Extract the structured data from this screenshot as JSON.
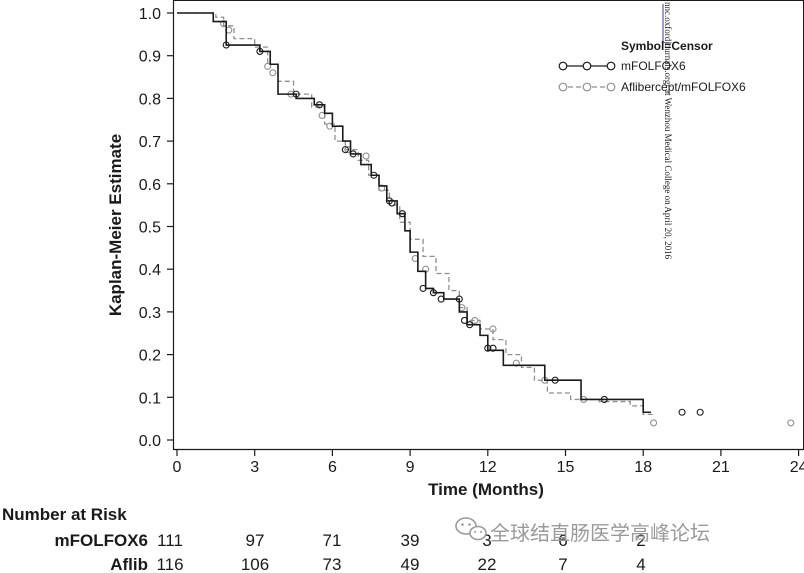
{
  "chart_data": {
    "type": "line",
    "subtype": "kaplan-meier",
    "title": "",
    "xlabel": "Time (Months)",
    "ylabel": "Kaplan-Meier Estimate",
    "xlim": [
      0,
      24
    ],
    "ylim": [
      0,
      1
    ],
    "xticks": [
      "0",
      "3",
      "6",
      "9",
      "12",
      "15",
      "18",
      "21",
      "24"
    ],
    "yticks": [
      "0.0",
      "0.1",
      "0.2",
      "0.3",
      "0.4",
      "0.5",
      "0.6",
      "0.7",
      "0.8",
      "0.9",
      "1.0"
    ],
    "legend_title": "Symbol=Censor",
    "legend_position": "top-right",
    "series": [
      {
        "name": "mFOLFOX6",
        "color": "#1a1a1a",
        "dash": "solid",
        "steps": [
          [
            0,
            1.0
          ],
          [
            1.4,
            0.98
          ],
          [
            1.9,
            0.925
          ],
          [
            3.2,
            0.91
          ],
          [
            3.6,
            0.88
          ],
          [
            3.9,
            0.81
          ],
          [
            4.6,
            0.8
          ],
          [
            5.3,
            0.785
          ],
          [
            5.7,
            0.765
          ],
          [
            6.0,
            0.735
          ],
          [
            6.4,
            0.7
          ],
          [
            6.7,
            0.67
          ],
          [
            7.1,
            0.645
          ],
          [
            7.5,
            0.62
          ],
          [
            7.8,
            0.595
          ],
          [
            8.1,
            0.56
          ],
          [
            8.5,
            0.53
          ],
          [
            8.8,
            0.49
          ],
          [
            9.0,
            0.44
          ],
          [
            9.3,
            0.395
          ],
          [
            9.6,
            0.355
          ],
          [
            9.9,
            0.345
          ],
          [
            10.3,
            0.33
          ],
          [
            10.9,
            0.3
          ],
          [
            11.2,
            0.27
          ],
          [
            11.7,
            0.245
          ],
          [
            12.0,
            0.21
          ],
          [
            12.6,
            0.175
          ],
          [
            14.2,
            0.14
          ],
          [
            15.6,
            0.095
          ],
          [
            18.0,
            0.065
          ]
        ],
        "end_x": 18.3,
        "censors": [
          [
            1.9,
            0.925
          ],
          [
            3.2,
            0.91
          ],
          [
            4.6,
            0.81
          ],
          [
            5.5,
            0.785
          ],
          [
            6.5,
            0.68
          ],
          [
            6.8,
            0.67
          ],
          [
            7.6,
            0.62
          ],
          [
            8.2,
            0.56
          ],
          [
            8.3,
            0.555
          ],
          [
            8.7,
            0.53
          ],
          [
            9.5,
            0.355
          ],
          [
            9.9,
            0.345
          ],
          [
            10.2,
            0.33
          ],
          [
            10.9,
            0.33
          ],
          [
            11.1,
            0.28
          ],
          [
            11.3,
            0.27
          ],
          [
            12.0,
            0.215
          ],
          [
            12.2,
            0.215
          ],
          [
            14.6,
            0.14
          ],
          [
            16.5,
            0.095
          ],
          [
            19.5,
            0.065
          ],
          [
            20.2,
            0.065
          ]
        ]
      },
      {
        "name": "Aflibercept/mFOLFOX6",
        "color": "#8f8f8f",
        "dash": "dashed",
        "steps": [
          [
            0,
            1.0
          ],
          [
            1.5,
            0.99
          ],
          [
            1.8,
            0.97
          ],
          [
            2.2,
            0.94
          ],
          [
            3.0,
            0.92
          ],
          [
            3.5,
            0.88
          ],
          [
            3.9,
            0.84
          ],
          [
            4.5,
            0.81
          ],
          [
            5.2,
            0.78
          ],
          [
            5.7,
            0.74
          ],
          [
            6.1,
            0.7
          ],
          [
            6.5,
            0.68
          ],
          [
            7.0,
            0.655
          ],
          [
            7.4,
            0.62
          ],
          [
            7.8,
            0.585
          ],
          [
            8.2,
            0.55
          ],
          [
            8.6,
            0.51
          ],
          [
            9.0,
            0.47
          ],
          [
            9.5,
            0.43
          ],
          [
            10.0,
            0.39
          ],
          [
            10.5,
            0.35
          ],
          [
            10.9,
            0.31
          ],
          [
            11.2,
            0.28
          ],
          [
            11.7,
            0.26
          ],
          [
            12.2,
            0.235
          ],
          [
            12.7,
            0.2
          ],
          [
            13.3,
            0.17
          ],
          [
            13.8,
            0.14
          ],
          [
            14.3,
            0.11
          ],
          [
            15.2,
            0.095
          ],
          [
            16.3,
            0.09
          ],
          [
            17.5,
            0.08
          ],
          [
            18.0,
            0.06
          ]
        ],
        "end_x": 18.4,
        "censors": [
          [
            1.8,
            0.975
          ],
          [
            2.0,
            0.96
          ],
          [
            3.5,
            0.875
          ],
          [
            3.7,
            0.86
          ],
          [
            4.4,
            0.81
          ],
          [
            5.6,
            0.76
          ],
          [
            5.9,
            0.735
          ],
          [
            6.6,
            0.68
          ],
          [
            7.3,
            0.665
          ],
          [
            7.9,
            0.59
          ],
          [
            9.2,
            0.425
          ],
          [
            9.6,
            0.4
          ],
          [
            11.0,
            0.31
          ],
          [
            11.5,
            0.28
          ],
          [
            12.2,
            0.26
          ],
          [
            13.1,
            0.18
          ],
          [
            14.2,
            0.14
          ],
          [
            15.7,
            0.095
          ],
          [
            18.4,
            0.04
          ],
          [
            23.7,
            0.04
          ]
        ]
      }
    ],
    "risk_table": {
      "title": "Number at Risk",
      "rows": [
        {
          "label": "mFOLFOX6",
          "values": [
            "111",
            "97",
            "71",
            "39",
            "3",
            "6",
            "2"
          ]
        },
        {
          "label": "Aflib",
          "values": [
            "116",
            "106",
            "73",
            "49",
            "22",
            "7",
            "4"
          ]
        }
      ]
    },
    "overlay_text": "nnc.oxfordjournals.org/ at Wenzhou Medical College on April 20, 2016",
    "watermark": "全球结直肠医学高峰论坛"
  }
}
